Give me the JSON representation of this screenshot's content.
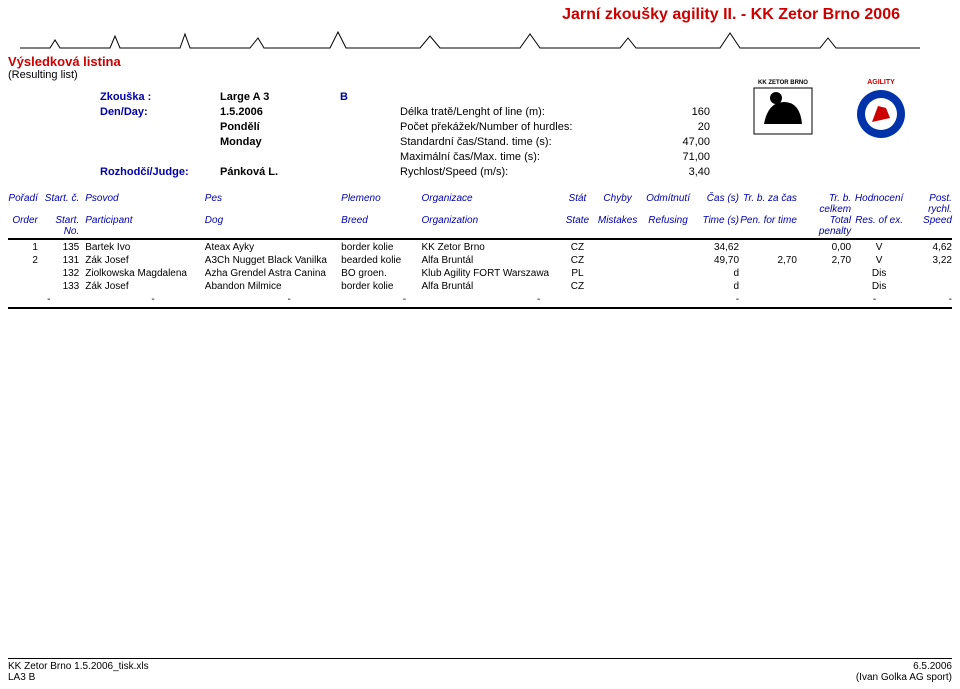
{
  "colors": {
    "accent": "#cc0000",
    "link": "#0000aa",
    "bg": "#ffffff",
    "rule": "#000000"
  },
  "header": {
    "main_title": "Jarní zkoušky agility II. - KK Zetor Brno 2006",
    "sub_title": "Výsledková listina",
    "resulting": "(Resulting list)"
  },
  "info": {
    "trial_lbl": "Zkouška :",
    "trial_val": "Large  A 3",
    "trial_grp": "B",
    "day_lbl": "Den/Day:",
    "day_val": "1.5.2006",
    "day_name_cz": "Pondělí",
    "day_name_en": "Monday",
    "judge_lbl": "Rozhodčí/Judge:",
    "judge_val": "Pánková L.",
    "p_len_lbl": "Délka tratě/Lenght of line (m):",
    "p_len_val": "160",
    "p_hur_lbl": "Počet překážek/Number of hurdles:",
    "p_hur_val": "20",
    "p_std_lbl": "Standardní čas/Stand. time (s):",
    "p_std_val": "47,00",
    "p_max_lbl": "Maximální čas/Max. time (s):",
    "p_max_val": "71,00",
    "p_spd_lbl": "Rychlost/Speed (m/s):",
    "p_spd_val": "3,40"
  },
  "columns": {
    "r1": {
      "ord": "Pořadí",
      "sn": "Start. č.",
      "han": "Psovod",
      "dog": "Pes",
      "bre": "Plemeno",
      "org": "Organizace",
      "st": "Stát",
      "mis": "Chyby",
      "ref": "Odmítnutí",
      "tim": "Čas (s)",
      "pen": "Tr. b. za čas",
      "tot": "Tr. b. celkem",
      "res": "Hodnocení",
      "spd": "Post. rychl."
    },
    "r2": {
      "ord": "Order",
      "sn": "Start. No.",
      "han": "Participant",
      "dog": "Dog",
      "bre": "Breed",
      "org": "Organization",
      "st": "State",
      "mis": "Mistakes",
      "ref": "Refusing",
      "tim": "Time (s)",
      "pen": "Pen. for time",
      "tot": "Total penalty",
      "res": "Res. of ex.",
      "spd": "Speed"
    }
  },
  "rows": [
    {
      "ord": "1",
      "sn": "135",
      "han": "Bartek Ivo",
      "dog": "Ateax Ayky",
      "bre": "border kolie",
      "org": "KK Zetor Brno",
      "st": "CZ",
      "mis": "",
      "ref": "",
      "tim": "34,62",
      "pen": "",
      "tot": "0,00",
      "res": "V",
      "spd": "4,62"
    },
    {
      "ord": "2",
      "sn": "131",
      "han": "Žák Josef",
      "dog": "A3Ch Nugget Black Vanilka",
      "bre": "bearded kolie",
      "org": "Alfa Bruntál",
      "st": "CZ",
      "mis": "",
      "ref": "",
      "tim": "49,70",
      "pen": "2,70",
      "tot": "2,70",
      "res": "V",
      "spd": "3,22"
    },
    {
      "ord": "",
      "sn": "132",
      "han": "Ziolkowska Magdalena",
      "dog": "Azha Grendel Astra Canina",
      "bre": "BO groen.",
      "org": "Klub Agility FORT Warszawa",
      "st": "PL",
      "mis": "",
      "ref": "",
      "tim": "d",
      "pen": "",
      "tot": "",
      "res": "Dis",
      "spd": ""
    },
    {
      "ord": "",
      "sn": "133",
      "han": "Žák Josef",
      "dog": "Abandon Milmice",
      "bre": "border kolie",
      "org": "Alfa Bruntál",
      "st": "CZ",
      "mis": "",
      "ref": "",
      "tim": "d",
      "pen": "",
      "tot": "",
      "res": "Dis",
      "spd": ""
    }
  ],
  "dash": "-",
  "footer": {
    "l1": "KK Zetor Brno 1.5.2006_tisk.xls",
    "l2": "LA3 B",
    "r1": "6.5.2006",
    "r2": "(Ivan Golka AG sport)"
  }
}
